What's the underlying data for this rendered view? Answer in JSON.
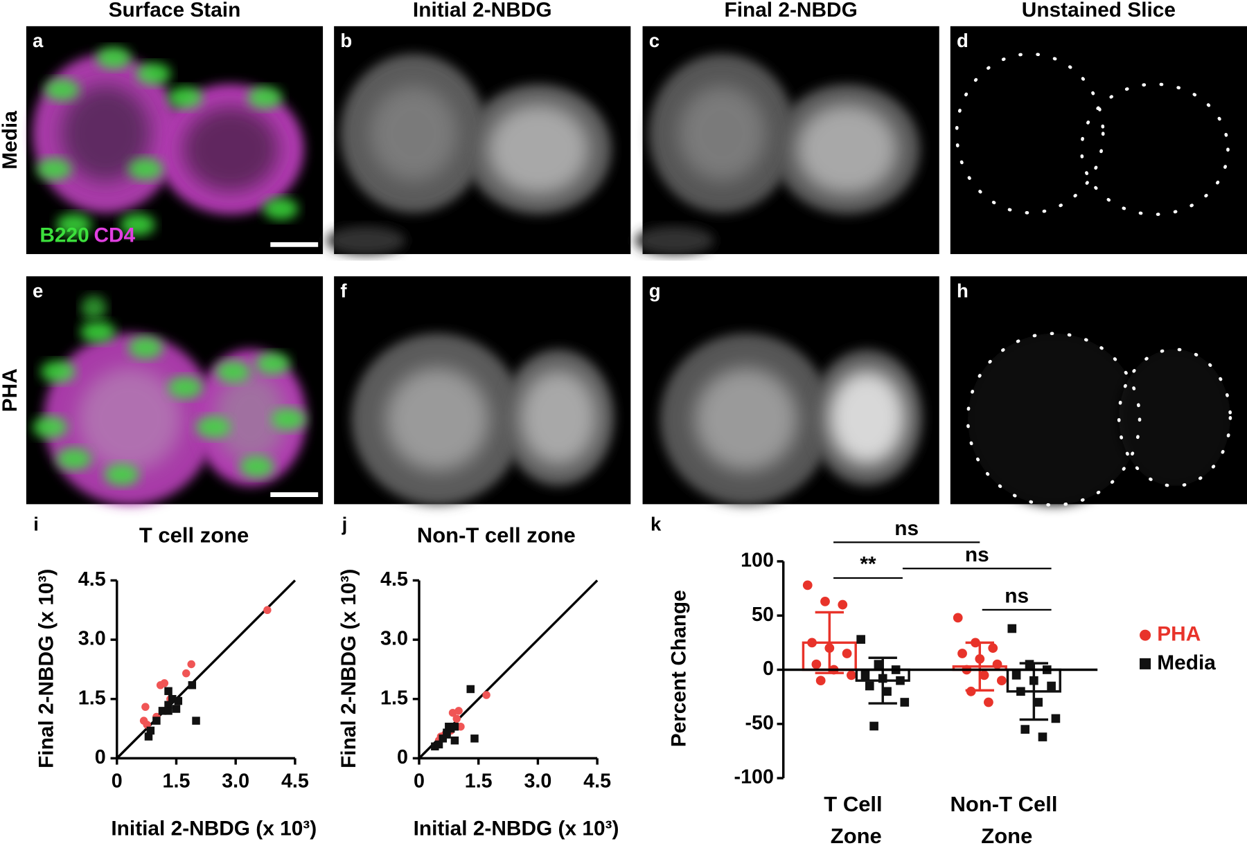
{
  "figure": {
    "columns": [
      "Surface Stain",
      "Initial 2-NBDG",
      "Final 2-NBDG",
      "Unstained Slice"
    ],
    "rows": [
      "Media",
      "PHA"
    ],
    "panel_letters": [
      "a",
      "b",
      "c",
      "d",
      "e",
      "f",
      "g",
      "h",
      "i",
      "j",
      "k"
    ],
    "stain_labels": [
      "B220",
      "CD4"
    ]
  },
  "chart_data": [
    {
      "type": "scatter",
      "title": "T cell zone",
      "xlabel": "Initial 2-NBDG (x 10³)",
      "ylabel": "Final 2-NBDG (x 10³)",
      "xlim": [
        0,
        4.5
      ],
      "ylim": [
        0,
        4.5
      ],
      "xticks": [
        0,
        1.5,
        {
          "value": 3,
          "label": "3.0"
        },
        4.5
      ],
      "yticks": [
        0,
        1.5,
        {
          "value": 3,
          "label": "3.0"
        },
        4.5
      ],
      "series": [
        {
          "color": "#f05555",
          "x": [
            0.72,
            0.68,
            0.76,
            1.1,
            1.2,
            1.75,
            1.88,
            3.8,
            1.0,
            1.55,
            1.35
          ],
          "values": [
            1.3,
            0.95,
            0.85,
            1.85,
            1.9,
            2.15,
            2.38,
            3.75,
            1.05,
            1.45,
            1.5
          ]
        },
        {
          "color": "#111111",
          "x": [
            0.8,
            0.85,
            1.0,
            1.15,
            1.3,
            1.3,
            1.4,
            1.5,
            1.55,
            1.9,
            2.0,
            1.3
          ],
          "values": [
            0.55,
            0.7,
            0.95,
            1.2,
            1.35,
            1.7,
            1.5,
            1.25,
            1.45,
            1.85,
            0.95,
            1.2
          ]
        }
      ]
    },
    {
      "type": "scatter",
      "title": "Non-T cell zone",
      "xlabel": "Initial 2-NBDG (x 10³)",
      "ylabel": "Final 2-NBDG (x 10³)",
      "xlim": [
        0,
        4.5
      ],
      "ylim": [
        0,
        4.5
      ],
      "xticks": [
        0,
        1.5,
        {
          "value": 3,
          "label": "3.0"
        },
        4.5
      ],
      "yticks": [
        0,
        1.5,
        {
          "value": 3,
          "label": "3.0"
        },
        4.5
      ],
      "series": [
        {
          "color": "#f05555",
          "x": [
            0.5,
            0.55,
            0.6,
            0.65,
            0.8,
            0.85,
            0.95,
            1.0,
            1.05,
            1.7,
            0.6
          ],
          "values": [
            0.45,
            0.55,
            0.5,
            0.6,
            0.7,
            1.15,
            1.0,
            1.2,
            0.8,
            1.6,
            0.55
          ]
        },
        {
          "color": "#111111",
          "x": [
            0.4,
            0.5,
            0.6,
            0.7,
            0.75,
            0.8,
            0.9,
            0.9,
            1.3,
            1.4,
            0.7
          ],
          "values": [
            0.3,
            0.35,
            0.5,
            0.65,
            0.8,
            0.75,
            0.45,
            0.8,
            1.75,
            0.5,
            0.6
          ]
        }
      ]
    },
    {
      "type": "bar",
      "ylabel": "Percent Change",
      "categories": [
        "T Cell Zone",
        "Non-T Cell Zone"
      ],
      "ylim": [
        -100,
        100
      ],
      "yticks": [
        -100,
        -50,
        0,
        50,
        100
      ],
      "series": [
        {
          "name": "PHA",
          "color": "#e8332a",
          "marker": "circle",
          "values": [
            25,
            3
          ],
          "errors": [
            28,
            22
          ],
          "points": [
            [
              78,
              63,
              60,
              25,
              20,
              15,
              5,
              0,
              -5,
              -10
            ],
            [
              48,
              25,
              20,
              15,
              10,
              5,
              0,
              -5,
              -10,
              -20,
              -30
            ]
          ]
        },
        {
          "name": "Media",
          "color": "#111111",
          "marker": "square",
          "values": [
            -10,
            -20
          ],
          "errors": [
            21,
            26
          ],
          "points": [
            [
              28,
              5,
              0,
              -5,
              -8,
              -10,
              -15,
              -20,
              -30,
              -52
            ],
            [
              38,
              5,
              0,
              -5,
              -10,
              -15,
              -20,
              -30,
              -45,
              -55,
              -62
            ]
          ]
        }
      ],
      "annotations": [
        "ns",
        "**",
        "ns",
        "ns"
      ]
    }
  ]
}
